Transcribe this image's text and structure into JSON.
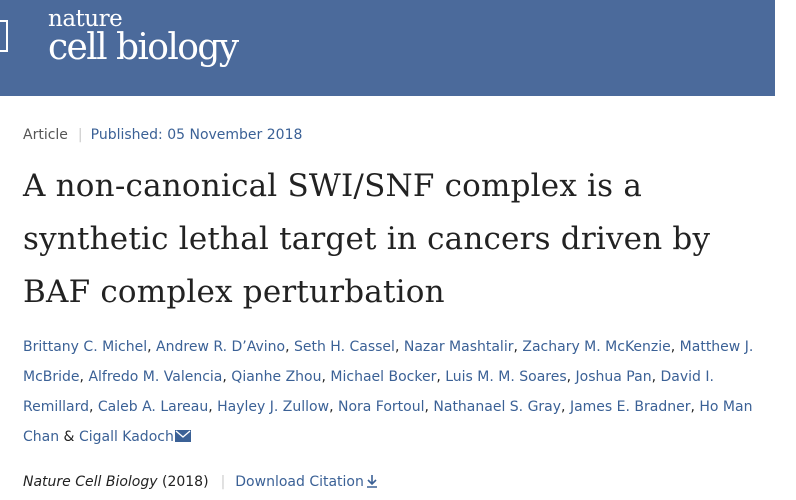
{
  "header": {
    "logo_top": "nature",
    "logo_bottom": "cell biology",
    "background_color": "#4b6a9b"
  },
  "article": {
    "type": "Article",
    "published": "Published: 05 November 2018",
    "title": "A non-canonical SWI/SNF complex is a synthetic lethal target in cancers driven by BAF complex perturbation",
    "authors": [
      "Brittany C. Michel",
      "Andrew R. D’Avino",
      "Seth H. Cassel",
      "Nazar Mashtalir",
      "Zachary M. McKenzie",
      "Matthew J. McBride",
      "Alfredo M. Valencia",
      "Qianhe Zhou",
      "Michael Bocker",
      "Luis M. M. Soares",
      "Joshua Pan",
      "David I. Remillard",
      "Caleb A. Lareau",
      "Hayley J. Zullow",
      "Nora Fortoul",
      "Nathanael S. Gray",
      "James E. Bradner",
      "Ho Man Chan",
      "Cigall Kadoch"
    ],
    "author_separator": ", ",
    "author_last_joiner": " & ",
    "corresponding_icon": "mail-icon",
    "journal": "Nature Cell Biology",
    "year": "(2018)",
    "download_label": "Download Citation",
    "download_icon": "download-icon",
    "link_color": "#3b6196"
  }
}
